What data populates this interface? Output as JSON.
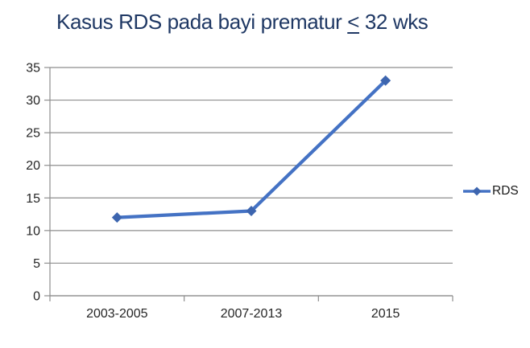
{
  "title": {
    "prefix": "Kasus RDS pada bayi prematur ",
    "underlined": "<",
    "suffix": " 32 wks"
  },
  "legend": {
    "label": "RDS"
  },
  "colors": {
    "title": "#1F3864",
    "series_line": "#4472C4",
    "series_marker": "#3D65AF",
    "gridline": "#8E8E8E",
    "axis": "#8E8E8E",
    "tick_label": "#262626",
    "legend_text": "#1A1A1A",
    "background": "#FFFFFF"
  },
  "chart_data": {
    "type": "line",
    "title": "Kasus RDS pada bayi prematur < 32 wks",
    "categories": [
      "2003-2005",
      "2007-2013",
      "2015"
    ],
    "series": [
      {
        "name": "RDS",
        "values": [
          12,
          13,
          33
        ]
      }
    ],
    "xlabel": "",
    "ylabel": "",
    "ylim": [
      0,
      35
    ],
    "ytick_step": 5,
    "yticks": [
      0,
      5,
      10,
      15,
      20,
      25,
      30,
      35
    ],
    "grid": true,
    "legend_position": "right",
    "marker": "diamond"
  }
}
